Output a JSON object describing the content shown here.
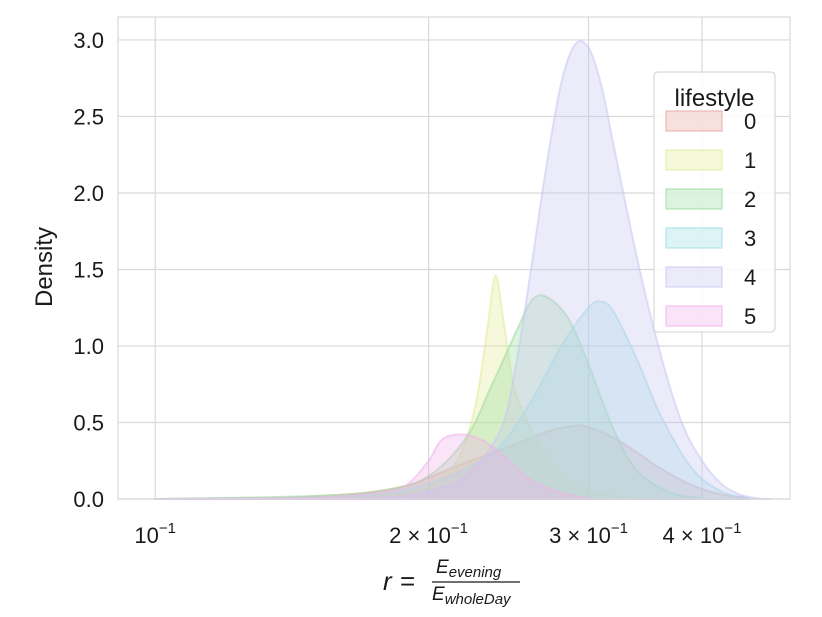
{
  "chart_data": {
    "type": "area",
    "xlabel": {
      "prefix": "r",
      "equals": "=",
      "numerator": "E",
      "numerator_sub": "evening",
      "denominator": "E",
      "denominator_sub": "wholeDay"
    },
    "ylabel": "Density",
    "x_scale": "log",
    "xlim": [
      0.091,
      0.5
    ],
    "ylim": [
      0,
      3.15
    ],
    "grid": true,
    "x_ticks": [
      {
        "value": 0.1,
        "base": "10",
        "exp": "−1"
      },
      {
        "value": 0.2,
        "base": "2 × 10",
        "exp": "−1"
      },
      {
        "value": 0.3,
        "base": "3 × 10",
        "exp": "−1"
      },
      {
        "value": 0.4,
        "base": "4 × 10",
        "exp": "−1"
      }
    ],
    "y_ticks": [
      {
        "value": 0.0,
        "label": "0.0"
      },
      {
        "value": 0.5,
        "label": "0.5"
      },
      {
        "value": 1.0,
        "label": "1.0"
      },
      {
        "value": 1.5,
        "label": "1.5"
      },
      {
        "value": 2.0,
        "label": "2.0"
      },
      {
        "value": 2.5,
        "label": "2.5"
      },
      {
        "value": 3.0,
        "label": "3.0"
      }
    ],
    "legend": {
      "title": "lifestyle",
      "placement": "top-right"
    },
    "series": [
      {
        "name": "0",
        "color": "#e8a7a0",
        "x": [
          0.1,
          0.14,
          0.17,
          0.19,
          0.2,
          0.22,
          0.235,
          0.25,
          0.27,
          0.29,
          0.3,
          0.32,
          0.34,
          0.36,
          0.39,
          0.42,
          0.45
        ],
        "y": [
          0.0,
          0.01,
          0.04,
          0.09,
          0.14,
          0.24,
          0.3,
          0.36,
          0.44,
          0.48,
          0.47,
          0.4,
          0.3,
          0.2,
          0.09,
          0.03,
          0.005
        ]
      },
      {
        "name": "1",
        "color": "#e6ea9a",
        "x": [
          0.1,
          0.15,
          0.18,
          0.2,
          0.215,
          0.225,
          0.232,
          0.237,
          0.242,
          0.248,
          0.255,
          0.265,
          0.28,
          0.3,
          0.33,
          0.37
        ],
        "y": [
          0.0,
          0.01,
          0.03,
          0.08,
          0.25,
          0.6,
          1.1,
          1.46,
          1.15,
          0.75,
          0.55,
          0.35,
          0.15,
          0.05,
          0.01,
          0.0
        ]
      },
      {
        "name": "2",
        "color": "#9adc9e",
        "x": [
          0.1,
          0.15,
          0.18,
          0.2,
          0.22,
          0.235,
          0.25,
          0.26,
          0.27,
          0.285,
          0.3,
          0.32,
          0.34,
          0.37,
          0.4
        ],
        "y": [
          0.0,
          0.02,
          0.06,
          0.15,
          0.4,
          0.75,
          1.1,
          1.3,
          1.32,
          1.18,
          0.88,
          0.45,
          0.18,
          0.04,
          0.005
        ]
      },
      {
        "name": "3",
        "color": "#9ee0e6",
        "x": [
          0.1,
          0.15,
          0.18,
          0.2,
          0.22,
          0.24,
          0.26,
          0.28,
          0.3,
          0.31,
          0.32,
          0.34,
          0.36,
          0.39,
          0.42,
          0.45
        ],
        "y": [
          0.0,
          0.01,
          0.04,
          0.1,
          0.2,
          0.35,
          0.65,
          1.0,
          1.25,
          1.29,
          1.22,
          0.9,
          0.55,
          0.2,
          0.05,
          0.005
        ]
      },
      {
        "name": "4",
        "color": "#c9c6f2",
        "x": [
          0.1,
          0.15,
          0.18,
          0.2,
          0.22,
          0.24,
          0.25,
          0.26,
          0.27,
          0.28,
          0.29,
          0.3,
          0.31,
          0.32,
          0.34,
          0.36,
          0.38,
          0.4,
          0.42,
          0.44,
          0.46,
          0.475
        ],
        "y": [
          0.0,
          0.0,
          0.01,
          0.05,
          0.15,
          0.45,
          0.9,
          1.55,
          2.2,
          2.72,
          2.97,
          2.95,
          2.7,
          2.3,
          1.55,
          0.95,
          0.5,
          0.25,
          0.1,
          0.03,
          0.005,
          0.0
        ]
      },
      {
        "name": "5",
        "color": "#f0b2ea",
        "x": [
          0.1,
          0.15,
          0.18,
          0.19,
          0.2,
          0.205,
          0.21,
          0.22,
          0.23,
          0.24,
          0.25,
          0.26,
          0.28,
          0.3
        ],
        "y": [
          0.0,
          0.01,
          0.05,
          0.1,
          0.25,
          0.36,
          0.41,
          0.42,
          0.38,
          0.3,
          0.2,
          0.12,
          0.04,
          0.005
        ]
      }
    ]
  }
}
